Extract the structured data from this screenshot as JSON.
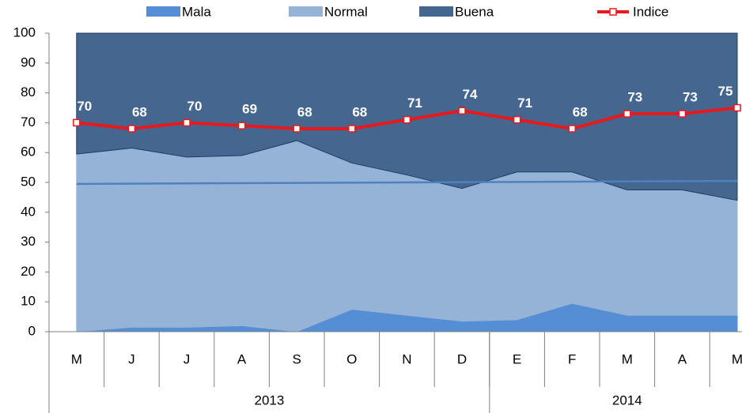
{
  "chart_data": {
    "type": "stacked-area",
    "categories": [
      "M",
      "J",
      "J",
      "A",
      "S",
      "O",
      "N",
      "D",
      "E",
      "F",
      "M",
      "A",
      "M"
    ],
    "groups": [
      {
        "label": "2013",
        "count": 8
      },
      {
        "label": "2014",
        "count": 5
      }
    ],
    "series": [
      {
        "name": "Mala",
        "color": "#558ed5",
        "values": [
          0,
          1.5,
          1.5,
          2,
          0,
          7.5,
          5.5,
          3.5,
          4,
          9.5,
          5.5,
          5.5,
          5.5
        ]
      },
      {
        "name": "Normal",
        "color": "#95b3d7",
        "values": [
          59.5,
          60,
          57,
          57,
          64,
          49,
          47,
          44.5,
          49.5,
          44,
          42,
          42,
          38.5
        ]
      },
      {
        "name": "Buena",
        "color": "#44668f",
        "values": [
          40.5,
          38.5,
          41.5,
          41,
          36,
          43.5,
          47.5,
          52,
          46.5,
          46.5,
          52.5,
          52.5,
          56
        ]
      },
      {
        "name": "Indice",
        "type": "line",
        "color": "#e8191c",
        "values": [
          70,
          68,
          70,
          69,
          68,
          68,
          71,
          74,
          71,
          68,
          73,
          73,
          75
        ]
      }
    ],
    "trendline": {
      "color": "#4f81bd",
      "values": [
        49.5,
        50.5
      ]
    },
    "ylim": [
      0,
      100
    ],
    "yticks": [
      0,
      10,
      20,
      30,
      40,
      50,
      60,
      70,
      80,
      90,
      100
    ]
  }
}
